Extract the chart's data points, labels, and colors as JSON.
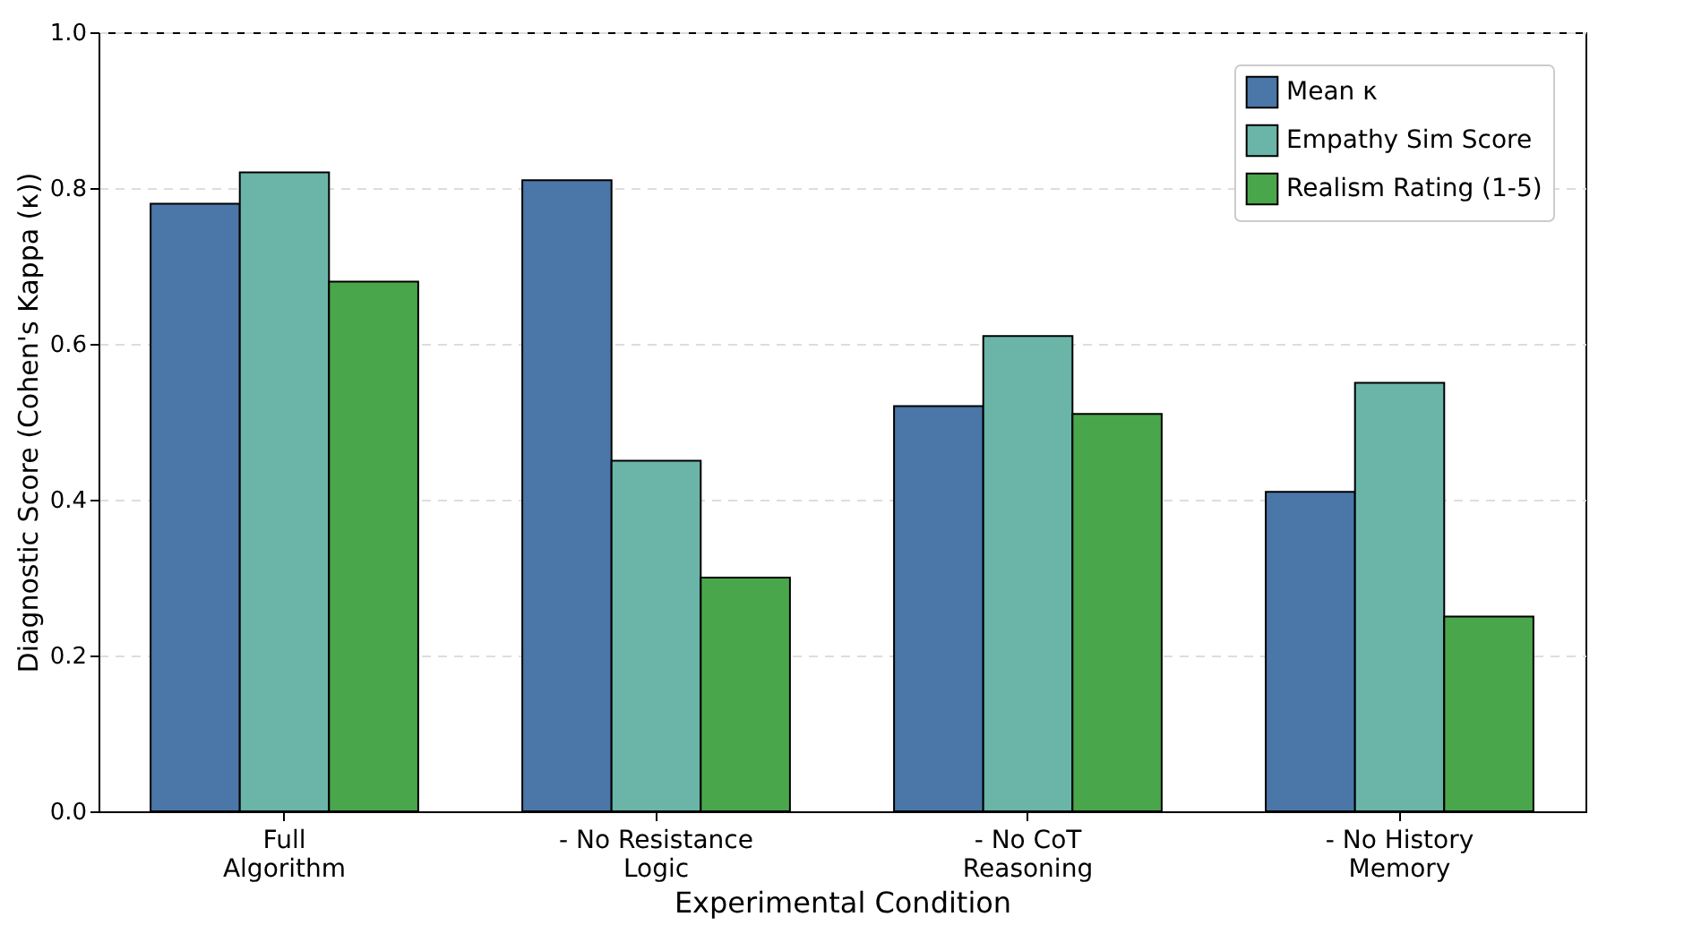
{
  "chart_data": {
    "type": "bar",
    "xlabel": "Experimental Condition",
    "ylabel": "Diagnostic Score (Cohen's Kappa (κ))",
    "categories": [
      "Full Algorithm",
      "- No Resistance Logic",
      "- No CoT Reasoning",
      "- No History Memory"
    ],
    "series": [
      {
        "name": "Mean κ",
        "color": "#4a76a8",
        "values": [
          0.78,
          0.81,
          0.52,
          0.41
        ]
      },
      {
        "name": "Empathy Sim Score",
        "color": "#6ab5a8",
        "values": [
          0.82,
          0.45,
          0.61,
          0.55
        ]
      },
      {
        "name": "Realism Rating (1-5)",
        "color": "#4aa64a",
        "values": [
          0.68,
          0.3,
          0.51,
          0.25
        ]
      }
    ],
    "ylim": [
      0,
      1
    ],
    "yticks": [
      {
        "value": 0,
        "label": "0.0"
      },
      {
        "value": 0.2,
        "label": "0.2"
      },
      {
        "value": 0.4,
        "label": "0.4"
      },
      {
        "value": 0.6,
        "label": "0.6"
      },
      {
        "value": 0.8,
        "label": "0.8"
      },
      {
        "value": 1,
        "label": "1.0"
      }
    ],
    "grid": "y",
    "legend": "top right"
  }
}
